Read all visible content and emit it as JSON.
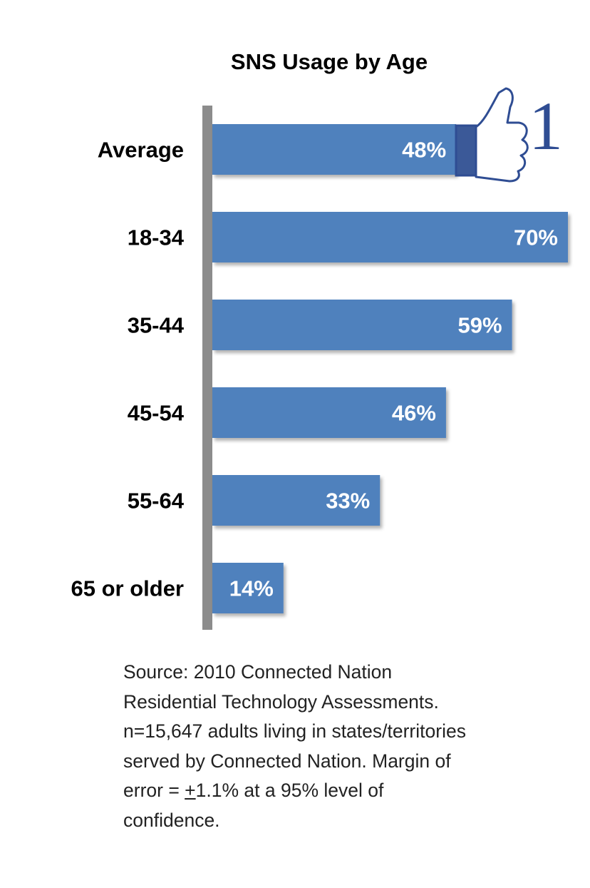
{
  "chart_data": {
    "type": "bar",
    "orientation": "horizontal",
    "title": "SNS Usage by Age",
    "categories": [
      "Average",
      "18-34",
      "35-44",
      "45-54",
      "55-64",
      "65 or older"
    ],
    "values": [
      48,
      70,
      59,
      46,
      33,
      14
    ],
    "value_labels": [
      "48%",
      "70%",
      "59%",
      "46%",
      "33%",
      "14%"
    ],
    "xlim": [
      0,
      70
    ],
    "unit": "%",
    "grid": false,
    "bar_color": "#4f81bd"
  },
  "like_icon": {
    "icon": "thumbs-up-icon",
    "count": "1",
    "color": "#2f4d93"
  },
  "source": {
    "lines": [
      "Source: 2010 Connected Nation",
      "Residential Technology Assessments.",
      "n=15,647 adults living in states/territories",
      "served by Connected Nation.  Margin of"
    ],
    "margin_prefix": "error = ",
    "margin_pm": "+",
    "margin_rest": "1.1% at a 95% level of",
    "last_line": "confidence."
  }
}
